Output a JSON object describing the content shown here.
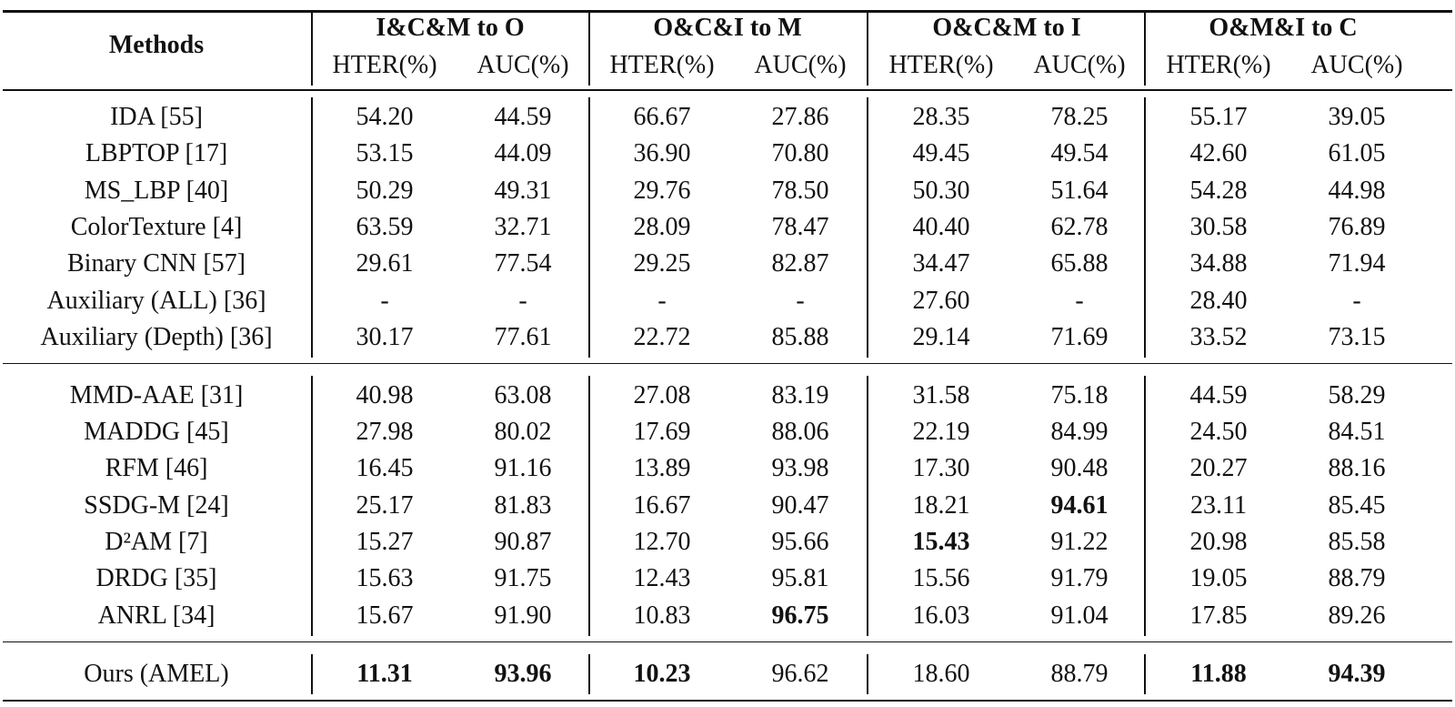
{
  "table": {
    "methods_header": "Methods",
    "groups": [
      {
        "title": "I&C&M to O",
        "columns": [
          "HTER(%)",
          "AUC(%)"
        ]
      },
      {
        "title": "O&C&I to M",
        "columns": [
          "HTER(%)",
          "AUC(%)"
        ]
      },
      {
        "title": "O&C&M to I",
        "columns": [
          "HTER(%)",
          "AUC(%)"
        ]
      },
      {
        "title": "O&M&I to C",
        "columns": [
          "HTER(%)",
          "AUC(%)"
        ]
      }
    ],
    "sections": [
      {
        "rows": [
          {
            "method": "IDA [55]",
            "cells": [
              "54.20",
              "44.59",
              "66.67",
              "27.86",
              "28.35",
              "78.25",
              "55.17",
              "39.05"
            ],
            "bold": []
          },
          {
            "method": "LBPTOP [17]",
            "cells": [
              "53.15",
              "44.09",
              "36.90",
              "70.80",
              "49.45",
              "49.54",
              "42.60",
              "61.05"
            ],
            "bold": []
          },
          {
            "method": "MS_LBP [40]",
            "cells": [
              "50.29",
              "49.31",
              "29.76",
              "78.50",
              "50.30",
              "51.64",
              "54.28",
              "44.98"
            ],
            "bold": []
          },
          {
            "method": "ColorTexture [4]",
            "cells": [
              "63.59",
              "32.71",
              "28.09",
              "78.47",
              "40.40",
              "62.78",
              "30.58",
              "76.89"
            ],
            "bold": []
          },
          {
            "method": "Binary CNN [57]",
            "cells": [
              "29.61",
              "77.54",
              "29.25",
              "82.87",
              "34.47",
              "65.88",
              "34.88",
              "71.94"
            ],
            "bold": []
          },
          {
            "method": "Auxiliary (ALL) [36]",
            "cells": [
              "-",
              "-",
              "-",
              "-",
              "27.60",
              "-",
              "28.40",
              "-"
            ],
            "bold": []
          },
          {
            "method": "Auxiliary (Depth) [36]",
            "cells": [
              "30.17",
              "77.61",
              "22.72",
              "85.88",
              "29.14",
              "71.69",
              "33.52",
              "73.15"
            ],
            "bold": []
          }
        ]
      },
      {
        "rows": [
          {
            "method": "MMD-AAE [31]",
            "cells": [
              "40.98",
              "63.08",
              "27.08",
              "83.19",
              "31.58",
              "75.18",
              "44.59",
              "58.29"
            ],
            "bold": []
          },
          {
            "method": "MADDG [45]",
            "cells": [
              "27.98",
              "80.02",
              "17.69",
              "88.06",
              "22.19",
              "84.99",
              "24.50",
              "84.51"
            ],
            "bold": []
          },
          {
            "method": "RFM [46]",
            "cells": [
              "16.45",
              "91.16",
              "13.89",
              "93.98",
              "17.30",
              "90.48",
              "20.27",
              "88.16"
            ],
            "bold": []
          },
          {
            "method": "SSDG-M [24]",
            "cells": [
              "25.17",
              "81.83",
              "16.67",
              "90.47",
              "18.21",
              "94.61",
              "23.11",
              "85.45"
            ],
            "bold": [
              5
            ]
          },
          {
            "method": "D²AM [7]",
            "cells": [
              "15.27",
              "90.87",
              "12.70",
              "95.66",
              "15.43",
              "91.22",
              "20.98",
              "85.58"
            ],
            "bold": [
              4
            ]
          },
          {
            "method": "DRDG [35]",
            "cells": [
              "15.63",
              "91.75",
              "12.43",
              "95.81",
              "15.56",
              "91.79",
              "19.05",
              "88.79"
            ],
            "bold": []
          },
          {
            "method": "ANRL [34]",
            "cells": [
              "15.67",
              "91.90",
              "10.83",
              "96.75",
              "16.03",
              "91.04",
              "17.85",
              "89.26"
            ],
            "bold": [
              3
            ]
          }
        ]
      },
      {
        "rows": [
          {
            "method": "Ours (AMEL)",
            "cells": [
              "11.31",
              "93.96",
              "10.23",
              "96.62",
              "18.60",
              "88.79",
              "11.88",
              "94.39"
            ],
            "bold": [
              0,
              1,
              2,
              6,
              7
            ]
          }
        ]
      }
    ]
  }
}
